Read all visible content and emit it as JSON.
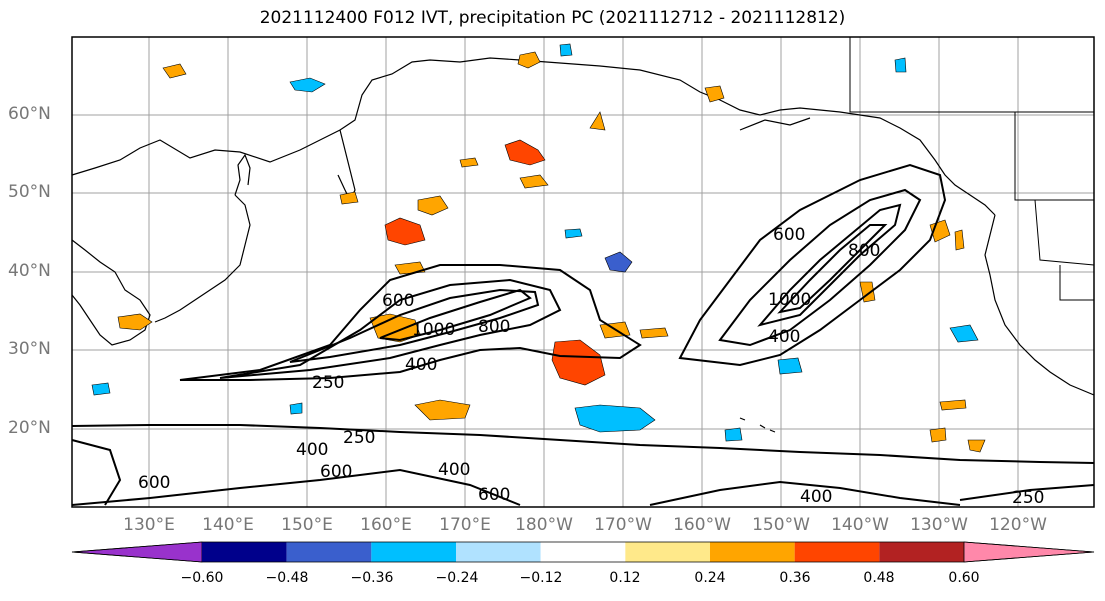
{
  "title": "2021112400 F012 IVT, precipitation PC (2021112712 - 2021112812)",
  "lat_labels": [
    "60°N",
    "50°N",
    "40°N",
    "30°N",
    "20°N"
  ],
  "lon_labels": [
    "130°E",
    "140°E",
    "150°E",
    "160°E",
    "170°E",
    "180°W",
    "170°W",
    "160°W",
    "150°W",
    "140°W",
    "130°W",
    "120°W"
  ],
  "contour_labels": {
    "c250_a": "250",
    "c250_b": "250",
    "c250_c": "250",
    "c400_a": "400",
    "c400_b": "400",
    "c400_c": "400",
    "c400_d": "400",
    "c400_e": "400",
    "c600_a": "600",
    "c600_b": "600",
    "c600_c": "600",
    "c600_d": "600",
    "c600_e": "600",
    "c800_a": "800",
    "c800_b": "800",
    "c1000_a": "1000",
    "c1000_b": "1000"
  },
  "colorbar": {
    "ticks": [
      "−0.60",
      "−0.48",
      "−0.36",
      "−0.24",
      "−0.12",
      "0.12",
      "0.24",
      "0.36",
      "0.48",
      "0.60"
    ],
    "colors": [
      "#9932cc",
      "#00008b",
      "#3a5fcd",
      "#00bfff",
      "#b0e2ff",
      "#ffffff",
      "#ffe98a",
      "#ffa500",
      "#ff4500",
      "#b22222",
      "#ff88aa"
    ]
  }
}
